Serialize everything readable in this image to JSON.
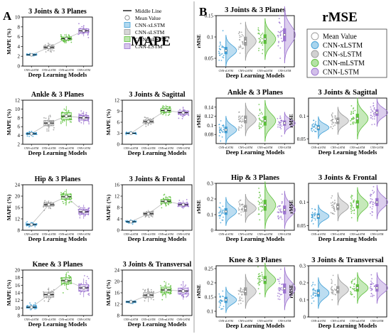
{
  "panel_labels": [
    "A",
    "B"
  ],
  "section_titles": [
    "MAPE",
    "rMSE"
  ],
  "models": [
    "CNN-xLSTM",
    "CNN-sLSTM",
    "CNN-mLSTM",
    "CNN-LSTM"
  ],
  "colors": {
    "CNN-xLSTM": "#3f9fd6",
    "CNN-sLSTM": "#9a9a9a",
    "CNN-mLSTM": "#5cbf3a",
    "CNN-LSTM": "#9b72cf"
  },
  "legend_mape": {
    "entries": [
      "Middle Line",
      "Mean Value",
      "CNN-xLSTM",
      "CNN-sLSTM",
      "CNN-mLSTM",
      "CNN-LSTM"
    ],
    "placement": "top-right of panel A"
  },
  "legend_rmse": {
    "entries": [
      "Mean Value",
      "CNN-xLSTM",
      "CNN-sLSTM",
      "CNN-mLSTM",
      "CNN-LSTM"
    ],
    "placement": "top-right of panel B"
  },
  "chart_data": [
    {
      "type": "box",
      "panel": "A",
      "title": "3 Joints & 3 Planes",
      "xlabel": "Deep Learning Models",
      "ylabel": "MAPE (%)",
      "categories": [
        "CNN-xLSTM",
        "CNN-sLSTM",
        "CNN-mLSTM",
        "CNN-LSTM"
      ],
      "ylim": [
        0,
        10
      ],
      "yticks": [
        0,
        2,
        4,
        6,
        8,
        10
      ],
      "means": [
        2.3,
        3.8,
        5.6,
        7.2
      ],
      "spreads": [
        0.15,
        0.4,
        0.5,
        0.6
      ],
      "grid": false
    },
    {
      "type": "box",
      "panel": "A",
      "title": "Ankle & 3 Planes",
      "xlabel": "Deep Learning Models",
      "ylabel": "MAPE (%)",
      "categories": [
        "CNN-xLSTM",
        "CNN-sLSTM",
        "CNN-mLSTM",
        "CNN-LSTM"
      ],
      "ylim": [
        2,
        12
      ],
      "yticks": [
        2,
        4,
        6,
        8,
        10,
        12
      ],
      "means": [
        4.4,
        6.8,
        8.4,
        8.0
      ],
      "spreads": [
        0.3,
        0.9,
        1.2,
        0.8
      ],
      "grid": false
    },
    {
      "type": "box",
      "panel": "A",
      "title": "3 Joints & Sagittal",
      "xlabel": "Deep Learning Models",
      "ylabel": "MAPE (%)",
      "categories": [
        "CNN-xLSTM",
        "CNN-sLSTM",
        "CNN-mLSTM",
        "CNN-LSTM"
      ],
      "ylim": [
        0,
        12
      ],
      "yticks": [
        0,
        3,
        6,
        9,
        12
      ],
      "means": [
        3.0,
        6.2,
        9.2,
        8.6
      ],
      "spreads": [
        0.2,
        0.6,
        0.8,
        0.7
      ],
      "grid": false
    },
    {
      "type": "box",
      "panel": "A",
      "title": "Hip & 3 Planes",
      "xlabel": "Deep Learning Models",
      "ylabel": "MAPE (%)",
      "categories": [
        "CNN-xLSTM",
        "CNN-sLSTM",
        "CNN-mLSTM",
        "CNN-LSTM"
      ],
      "ylim": [
        8,
        24
      ],
      "yticks": [
        8,
        12,
        16,
        20,
        24
      ],
      "means": [
        10.0,
        17.0,
        19.8,
        14.5
      ],
      "spreads": [
        0.4,
        0.8,
        1.4,
        1.3
      ],
      "grid": false
    },
    {
      "type": "box",
      "panel": "A",
      "title": "3 Joints & Frontal",
      "xlabel": "Deep Learning Models",
      "ylabel": "MAPE (%)",
      "categories": [
        "CNN-xLSTM",
        "CNN-sLSTM",
        "CNN-mLSTM",
        "CNN-LSTM"
      ],
      "ylim": [
        0,
        16
      ],
      "yticks": [
        0,
        4,
        8,
        12,
        16
      ],
      "means": [
        3.0,
        5.8,
        10.2,
        9.0
      ],
      "spreads": [
        0.3,
        0.7,
        1.0,
        0.8
      ],
      "grid": false
    },
    {
      "type": "box",
      "panel": "A",
      "title": "Knee & 3 Planes",
      "xlabel": "Deep Learning Models",
      "ylabel": "MAPE (%)",
      "categories": [
        "CNN-xLSTM",
        "CNN-sLSTM",
        "CNN-mLSTM",
        "CNN-LSTM"
      ],
      "ylim": [
        8,
        20
      ],
      "yticks": [
        8,
        10,
        12,
        14,
        16,
        18,
        20
      ],
      "means": [
        10.2,
        13.5,
        17.2,
        15.3
      ],
      "spreads": [
        0.4,
        1.0,
        1.2,
        1.3
      ],
      "grid": false
    },
    {
      "type": "box",
      "panel": "A",
      "title": "3 Joints & Transversal",
      "xlabel": "Deep Learning Models",
      "ylabel": "MAPE (%)",
      "categories": [
        "CNN-xLSTM",
        "CNN-sLSTM",
        "CNN-mLSTM",
        "CNN-LSTM"
      ],
      "ylim": [
        8,
        24
      ],
      "yticks": [
        8,
        12,
        16,
        20,
        24
      ],
      "means": [
        12.8,
        15.2,
        17.0,
        16.6
      ],
      "spreads": [
        0.4,
        1.3,
        1.5,
        1.6
      ],
      "grid": false
    },
    {
      "type": "violin",
      "panel": "B",
      "title": "3 Joints & 3 Planes",
      "xlabel": "Deep Learning Models",
      "ylabel": "rMSE",
      "categories": [
        "CNN-xLSTM",
        "CNN-sLSTM",
        "CNN-mLSTM",
        "CNN-LSTM"
      ],
      "ylim": [
        0.03,
        0.15
      ],
      "yticks": [
        0.05,
        0.1,
        0.15
      ],
      "means": [
        0.068,
        0.09,
        0.095,
        0.105
      ],
      "spreads": [
        0.012,
        0.015,
        0.016,
        0.022
      ],
      "grid": false
    },
    {
      "type": "violin",
      "panel": "B",
      "title": "Ankle & 3 Planes",
      "xlabel": "Deep Learning Models",
      "ylabel": "rMSE",
      "categories": [
        "CNN-xLSTM",
        "CNN-sLSTM",
        "CNN-mLSTM",
        "CNN-LSTM"
      ],
      "ylim": [
        0.06,
        0.16
      ],
      "yticks": [
        0.08,
        0.1,
        0.12,
        0.14
      ],
      "means": [
        0.09,
        0.113,
        0.11,
        0.105
      ],
      "spreads": [
        0.01,
        0.012,
        0.015,
        0.008
      ],
      "grid": false
    },
    {
      "type": "violin",
      "panel": "B",
      "title": "3 Joints & Sagittal",
      "xlabel": "Deep Learning Models",
      "ylabel": "rMSE",
      "categories": [
        "CNN-xLSTM",
        "CNN-sLSTM",
        "CNN-mLSTM",
        "CNN-LSTM"
      ],
      "ylim": [
        0.04,
        0.14
      ],
      "yticks": [
        0.05,
        0.1
      ],
      "means": [
        0.075,
        0.09,
        0.095,
        0.108
      ],
      "spreads": [
        0.008,
        0.01,
        0.015,
        0.01
      ],
      "grid": false
    },
    {
      "type": "violin",
      "panel": "B",
      "title": "Hip & 3 Planes",
      "xlabel": "Deep Learning Models",
      "ylabel": "rMSE",
      "categories": [
        "CNN-xLSTM",
        "CNN-sLSTM",
        "CNN-mLSTM",
        "CNN-LSTM"
      ],
      "ylim": [
        0.0,
        0.3
      ],
      "yticks": [
        0.0,
        0.1,
        0.2,
        0.3
      ],
      "means": [
        0.12,
        0.14,
        0.16,
        0.13
      ],
      "spreads": [
        0.03,
        0.03,
        0.05,
        0.04
      ],
      "grid": false
    },
    {
      "type": "violin",
      "panel": "B",
      "title": "3 Joints & Frontal",
      "xlabel": "Deep Learning Models",
      "ylabel": "rMSE",
      "categories": [
        "CNN-xLSTM",
        "CNN-sLSTM",
        "CNN-mLSTM",
        "CNN-LSTM"
      ],
      "ylim": [
        0.04,
        0.14
      ],
      "yticks": [
        0.05,
        0.1
      ],
      "means": [
        0.07,
        0.09,
        0.095,
        0.1
      ],
      "spreads": [
        0.008,
        0.01,
        0.012,
        0.012
      ],
      "grid": false
    },
    {
      "type": "violin",
      "panel": "B",
      "title": "Knee & 3 Planes",
      "xlabel": "Deep Learning Models",
      "ylabel": "rMSE",
      "categories": [
        "CNN-xLSTM",
        "CNN-sLSTM",
        "CNN-mLSTM",
        "CNN-LSTM"
      ],
      "ylim": [
        0.08,
        0.26
      ],
      "yticks": [
        0.1,
        0.15,
        0.2,
        0.25
      ],
      "means": [
        0.14,
        0.17,
        0.21,
        0.18
      ],
      "spreads": [
        0.015,
        0.02,
        0.02,
        0.025
      ],
      "grid": false
    },
    {
      "type": "violin",
      "panel": "B",
      "title": "3 Joints & Transversal",
      "xlabel": "Deep Learning Models",
      "ylabel": "rMSE",
      "categories": [
        "CNN-xLSTM",
        "CNN-sLSTM",
        "CNN-mLSTM",
        "CNN-LSTM"
      ],
      "ylim": [
        0.0,
        0.3
      ],
      "yticks": [
        0.0,
        0.1,
        0.2,
        0.3
      ],
      "means": [
        0.14,
        0.16,
        0.17,
        0.17
      ],
      "spreads": [
        0.03,
        0.03,
        0.03,
        0.03
      ],
      "grid": false
    }
  ]
}
